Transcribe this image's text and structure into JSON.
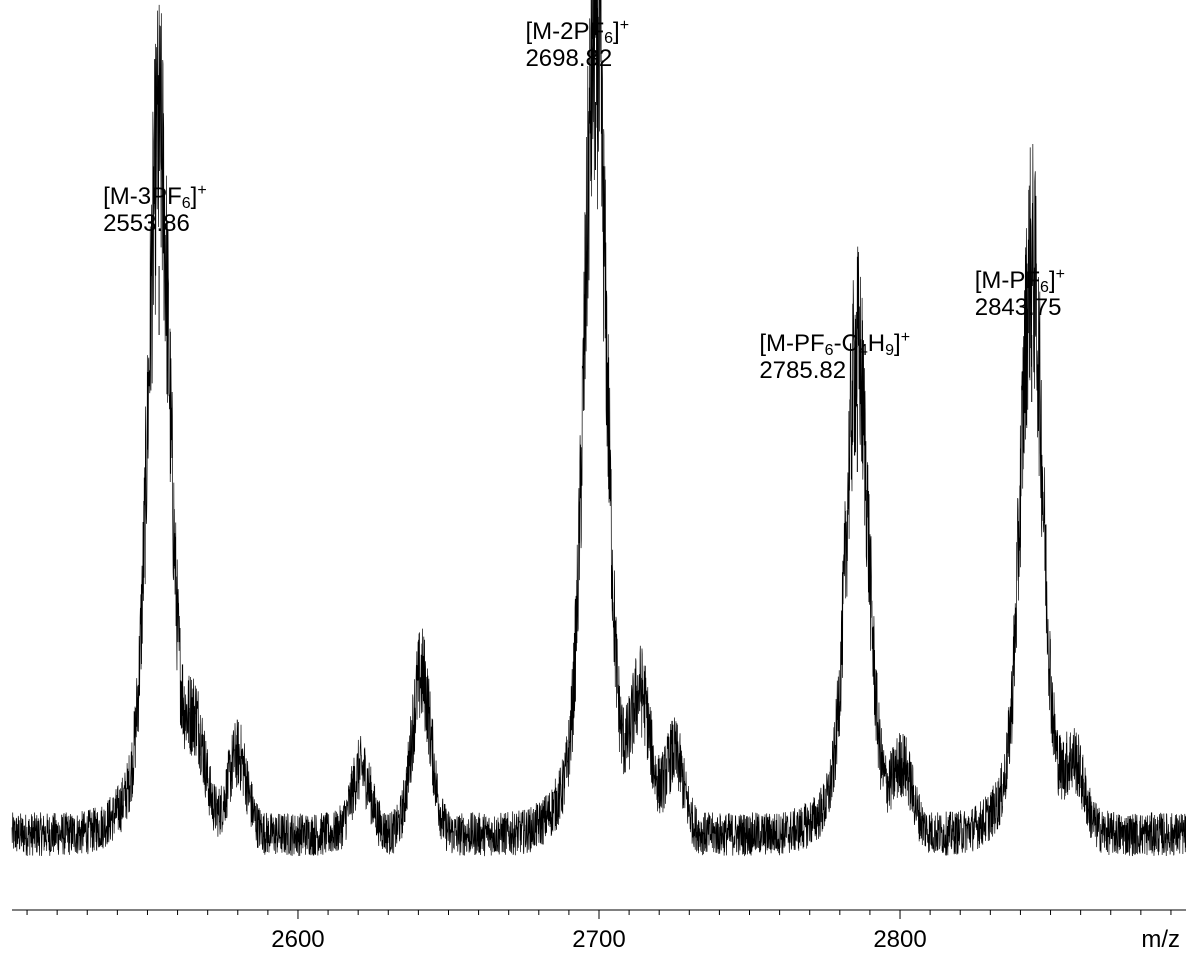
{
  "chart_data": {
    "type": "line",
    "xlabel": "m/z",
    "xlim": [
      2505,
      2895
    ],
    "ylim": [
      0,
      100
    ],
    "grid": false,
    "x_ticks": [
      2600,
      2700,
      2800
    ],
    "minor_tick_step": 10,
    "baseline": 8,
    "peaks": [
      {
        "center": 2553.86,
        "height": 86,
        "width": 2.2,
        "label": "2553.86",
        "formula": {
          "pre": "[M-3PF",
          "sub1": "6",
          "mid": "",
          "sub2": "",
          "post": "]",
          "sup": "+"
        }
      },
      {
        "center": 2698.82,
        "height": 99,
        "width": 2.2,
        "label": "2698.82",
        "formula": {
          "pre": "[M-2PF",
          "sub1": "6",
          "mid": "",
          "sub2": "",
          "post": "]",
          "sup": "+"
        }
      },
      {
        "center": 2785.82,
        "height": 60,
        "width": 2.2,
        "label": "2785.82",
        "formula": {
          "pre": "[M-PF",
          "sub1": "6",
          "mid": "-C",
          "sub2": "4",
          "post": "H",
          "sub3": "9",
          "post2": "]",
          "sup": "+"
        }
      },
      {
        "center": 2843.75,
        "height": 71,
        "width": 2.2,
        "label": "2843.75",
        "formula": {
          "pre": "[M-PF",
          "sub1": "6",
          "mid": "",
          "sub2": "",
          "post": "]",
          "sup": "+"
        }
      }
    ],
    "minor_features": [
      {
        "center": 2566,
        "height": 12
      },
      {
        "center": 2580,
        "height": 11
      },
      {
        "center": 2621,
        "height": 9
      },
      {
        "center": 2641,
        "height": 22
      },
      {
        "center": 2714,
        "height": 17
      },
      {
        "center": 2725,
        "height": 11
      },
      {
        "center": 2801,
        "height": 8
      },
      {
        "center": 2858,
        "height": 8
      }
    ]
  }
}
